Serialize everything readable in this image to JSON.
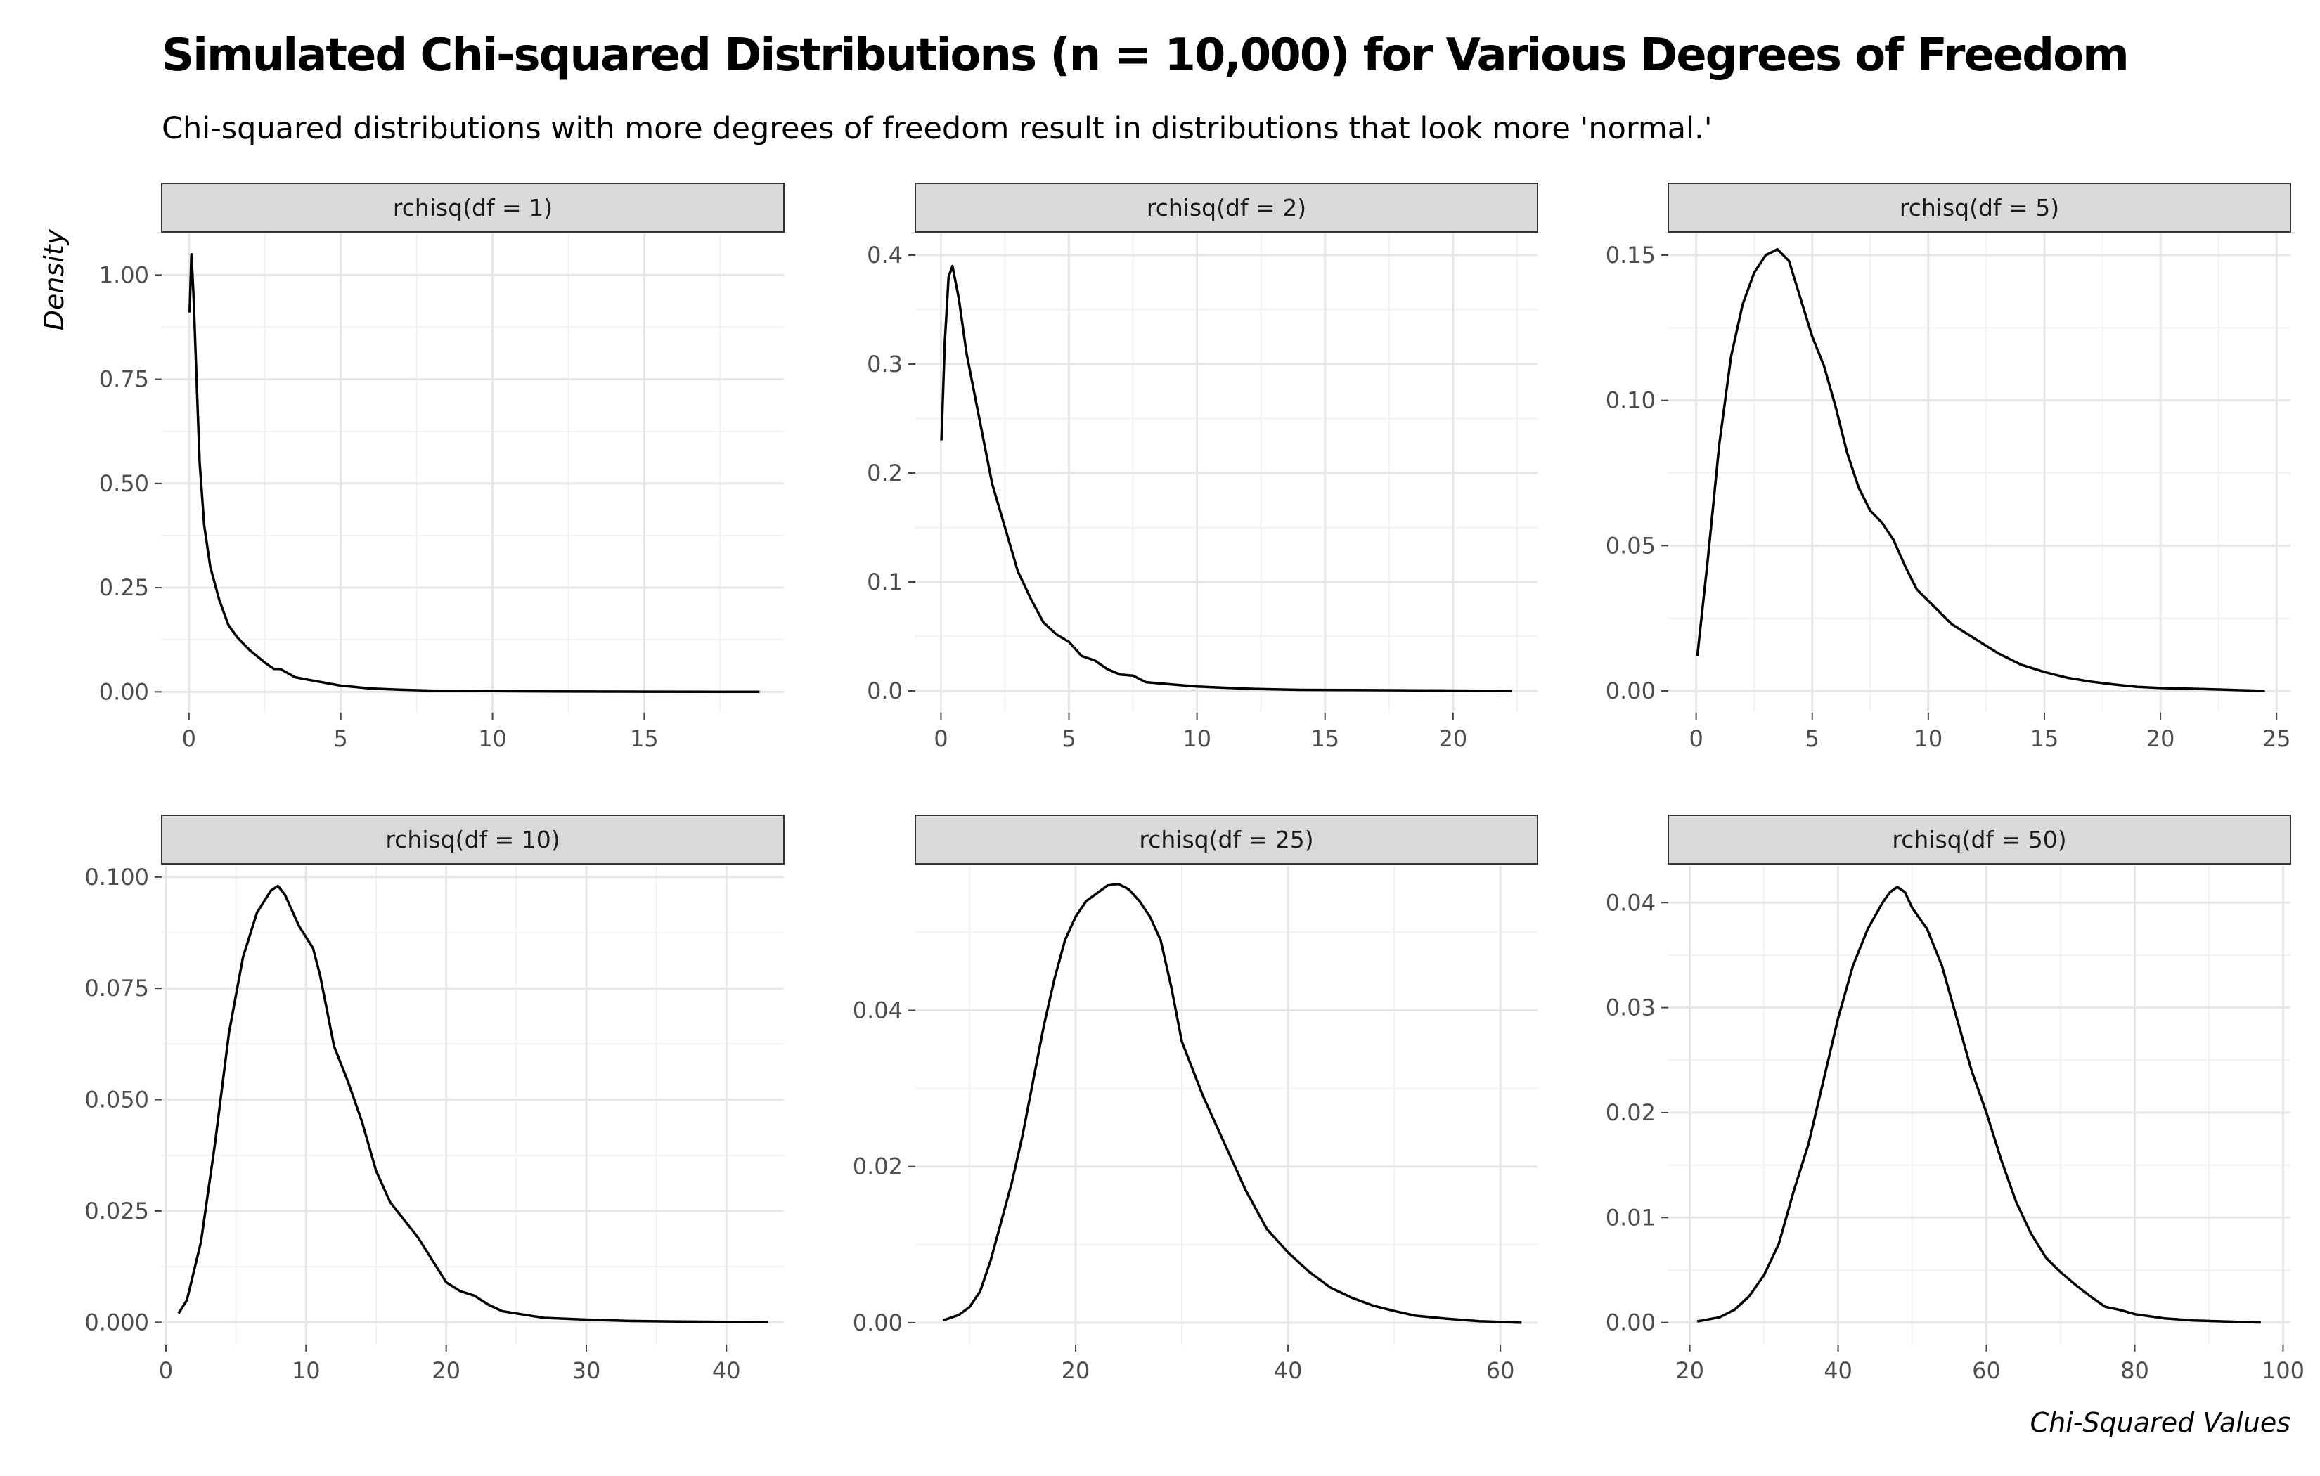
{
  "chart_data": {
    "type": "line",
    "title": "Simulated Chi-squared Distributions (n = 10,000) for Various Degrees of Freedom",
    "subtitle": "Chi-squared distributions with more degrees of freedom result in distributions that look more 'normal.'",
    "xlabel": "Chi-Squared Values",
    "ylabel": "Density",
    "grid": true,
    "legend": "none",
    "panels": [
      {
        "label": "rchisq(df = 1)",
        "xlim": [
          -0.9,
          19.6
        ],
        "ylim": [
          -0.05,
          1.1
        ],
        "xticks": [
          0,
          5,
          10,
          15
        ],
        "xtick_labels": [
          "0",
          "5",
          "10",
          "15"
        ],
        "yticks": [
          0,
          0.25,
          0.5,
          0.75,
          1.0
        ],
        "ytick_labels": [
          "0.00",
          "0.25",
          "0.50",
          "0.75",
          "1.00"
        ],
        "x": [
          0.02,
          0.08,
          0.15,
          0.25,
          0.35,
          0.5,
          0.7,
          1.0,
          1.3,
          1.6,
          2.0,
          2.5,
          2.8,
          3.0,
          3.5,
          4.0,
          5.0,
          6.0,
          7.0,
          8.0,
          10.0,
          12.0,
          15.0,
          18.8
        ],
        "y": [
          0.91,
          1.05,
          0.95,
          0.75,
          0.55,
          0.4,
          0.3,
          0.22,
          0.16,
          0.13,
          0.1,
          0.07,
          0.055,
          0.055,
          0.035,
          0.028,
          0.015,
          0.008,
          0.005,
          0.003,
          0.002,
          0.001,
          0.0005,
          0.0
        ]
      },
      {
        "label": "rchisq(df = 2)",
        "xlim": [
          -1.0,
          23.3
        ],
        "ylim": [
          -0.02,
          0.42
        ],
        "xticks": [
          0,
          5,
          10,
          15,
          20
        ],
        "xtick_labels": [
          "0",
          "5",
          "10",
          "15",
          "20"
        ],
        "yticks": [
          0,
          0.1,
          0.2,
          0.3,
          0.4
        ],
        "ytick_labels": [
          "0.0",
          "0.1",
          "0.2",
          "0.3",
          "0.4"
        ],
        "x": [
          0.02,
          0.15,
          0.3,
          0.45,
          0.7,
          1.0,
          1.5,
          2.0,
          2.5,
          3.0,
          3.5,
          4.0,
          4.5,
          5.0,
          5.5,
          6.0,
          6.5,
          7.0,
          7.5,
          8.0,
          9.0,
          10.0,
          11.0,
          12.0,
          14.0,
          16.0,
          18.0,
          20.0,
          22.3
        ],
        "y": [
          0.23,
          0.32,
          0.38,
          0.39,
          0.36,
          0.31,
          0.25,
          0.19,
          0.15,
          0.11,
          0.085,
          0.063,
          0.052,
          0.045,
          0.032,
          0.028,
          0.02,
          0.015,
          0.014,
          0.008,
          0.006,
          0.004,
          0.003,
          0.002,
          0.001,
          0.0008,
          0.0006,
          0.0003,
          0.0
        ]
      },
      {
        "label": "rchisq(df = 5)",
        "xlim": [
          -1.2,
          25.6
        ],
        "ylim": [
          -0.0075,
          0.1575
        ],
        "xticks": [
          0,
          5,
          10,
          15,
          20,
          25
        ],
        "xtick_labels": [
          "0",
          "5",
          "10",
          "15",
          "20",
          "25"
        ],
        "yticks": [
          0,
          0.05,
          0.1,
          0.15
        ],
        "ytick_labels": [
          "0.00",
          "0.05",
          "0.10",
          "0.15"
        ],
        "x": [
          0.05,
          0.5,
          1.0,
          1.5,
          2.0,
          2.5,
          3.0,
          3.5,
          4.0,
          4.5,
          5.0,
          5.5,
          6.0,
          6.5,
          7.0,
          7.5,
          8.0,
          8.5,
          9.0,
          9.5,
          10.0,
          11.0,
          12.0,
          13.0,
          14.0,
          15.0,
          16.0,
          17.0,
          18.0,
          19.0,
          20.0,
          22.0,
          24.5
        ],
        "y": [
          0.012,
          0.045,
          0.085,
          0.115,
          0.133,
          0.144,
          0.15,
          0.152,
          0.148,
          0.135,
          0.122,
          0.112,
          0.098,
          0.082,
          0.07,
          0.062,
          0.058,
          0.052,
          0.043,
          0.035,
          0.031,
          0.023,
          0.018,
          0.013,
          0.009,
          0.0065,
          0.0045,
          0.0032,
          0.0022,
          0.0014,
          0.001,
          0.0006,
          0.0
        ]
      },
      {
        "label": "rchisq(df = 10)",
        "xlim": [
          -0.3,
          44.1
        ],
        "ylim": [
          -0.005,
          0.1025
        ],
        "xticks": [
          0,
          10,
          20,
          30,
          40
        ],
        "xtick_labels": [
          "0",
          "10",
          "20",
          "30",
          "40"
        ],
        "yticks": [
          0,
          0.025,
          0.05,
          0.075,
          0.1
        ],
        "ytick_labels": [
          "0.000",
          "0.025",
          "0.050",
          "0.075",
          "0.100"
        ],
        "x": [
          0.9,
          1.5,
          2.5,
          3.5,
          4.5,
          5.5,
          6.5,
          7.5,
          8.0,
          8.5,
          9.5,
          10.5,
          11.0,
          12.0,
          13.0,
          14.0,
          15.0,
          16.0,
          17.0,
          18.0,
          19.0,
          20.0,
          21.0,
          22.0,
          23.0,
          24.0,
          25.0,
          27.0,
          30.0,
          33.0,
          36.0,
          40.0,
          43.0
        ],
        "y": [
          0.002,
          0.005,
          0.018,
          0.04,
          0.065,
          0.082,
          0.092,
          0.097,
          0.098,
          0.096,
          0.089,
          0.084,
          0.078,
          0.062,
          0.054,
          0.045,
          0.034,
          0.027,
          0.023,
          0.019,
          0.014,
          0.009,
          0.007,
          0.006,
          0.004,
          0.0025,
          0.002,
          0.001,
          0.0006,
          0.0003,
          0.0002,
          0.0001,
          0.0
        ]
      },
      {
        "label": "rchisq(df = 25)",
        "xlim": [
          4.9,
          63.5
        ],
        "ylim": [
          -0.0028,
          0.0585
        ],
        "xticks": [
          20,
          40,
          60
        ],
        "xtick_labels": [
          "20",
          "40",
          "60"
        ],
        "yticks": [
          0,
          0.02,
          0.04
        ],
        "ytick_labels": [
          "0.00",
          "0.02",
          "0.04"
        ],
        "x": [
          7.5,
          9.0,
          10.0,
          11.0,
          12.0,
          13.0,
          14.0,
          15.0,
          16.0,
          17.0,
          18.0,
          19.0,
          20.0,
          21.0,
          22.0,
          23.0,
          24.0,
          25.0,
          26.0,
          27.0,
          28.0,
          29.0,
          30.0,
          32.0,
          34.0,
          36.0,
          38.0,
          40.0,
          42.0,
          44.0,
          46.0,
          48.0,
          50.0,
          52.0,
          55.0,
          58.0,
          62.0
        ],
        "y": [
          0.0003,
          0.001,
          0.002,
          0.004,
          0.008,
          0.013,
          0.018,
          0.024,
          0.031,
          0.038,
          0.044,
          0.049,
          0.052,
          0.054,
          0.055,
          0.056,
          0.0562,
          0.0555,
          0.054,
          0.052,
          0.049,
          0.043,
          0.036,
          0.029,
          0.023,
          0.017,
          0.012,
          0.009,
          0.0065,
          0.0045,
          0.0032,
          0.0022,
          0.0015,
          0.0009,
          0.0005,
          0.0002,
          0.0
        ]
      },
      {
        "label": "rchisq(df = 50)",
        "xlim": [
          17.1,
          101.0
        ],
        "ylim": [
          -0.0021,
          0.0435
        ],
        "xticks": [
          20,
          40,
          60,
          80,
          100
        ],
        "xtick_labels": [
          "20",
          "40",
          "60",
          "80",
          "100"
        ],
        "yticks": [
          0,
          0.01,
          0.02,
          0.03,
          0.04
        ],
        "ytick_labels": [
          "0.00",
          "0.01",
          "0.02",
          "0.03",
          "0.04"
        ],
        "x": [
          21.0,
          24.0,
          26.0,
          28.0,
          30.0,
          32.0,
          34.0,
          36.0,
          38.0,
          40.0,
          42.0,
          44.0,
          46.0,
          47.0,
          48.0,
          49.0,
          50.0,
          52.0,
          54.0,
          56.0,
          58.0,
          60.0,
          62.0,
          64.0,
          66.0,
          68.0,
          70.0,
          72.0,
          74.0,
          76.0,
          78.0,
          80.0,
          84.0,
          88.0,
          92.0,
          97.0
        ],
        "y": [
          0.0001,
          0.0005,
          0.0012,
          0.0025,
          0.0045,
          0.0075,
          0.0125,
          0.017,
          0.023,
          0.029,
          0.034,
          0.0375,
          0.04,
          0.041,
          0.0415,
          0.041,
          0.0395,
          0.0375,
          0.034,
          0.029,
          0.024,
          0.02,
          0.0155,
          0.0115,
          0.0085,
          0.0062,
          0.0048,
          0.0036,
          0.0025,
          0.0015,
          0.0012,
          0.0008,
          0.0004,
          0.0002,
          0.0001,
          0.0
        ]
      }
    ]
  }
}
